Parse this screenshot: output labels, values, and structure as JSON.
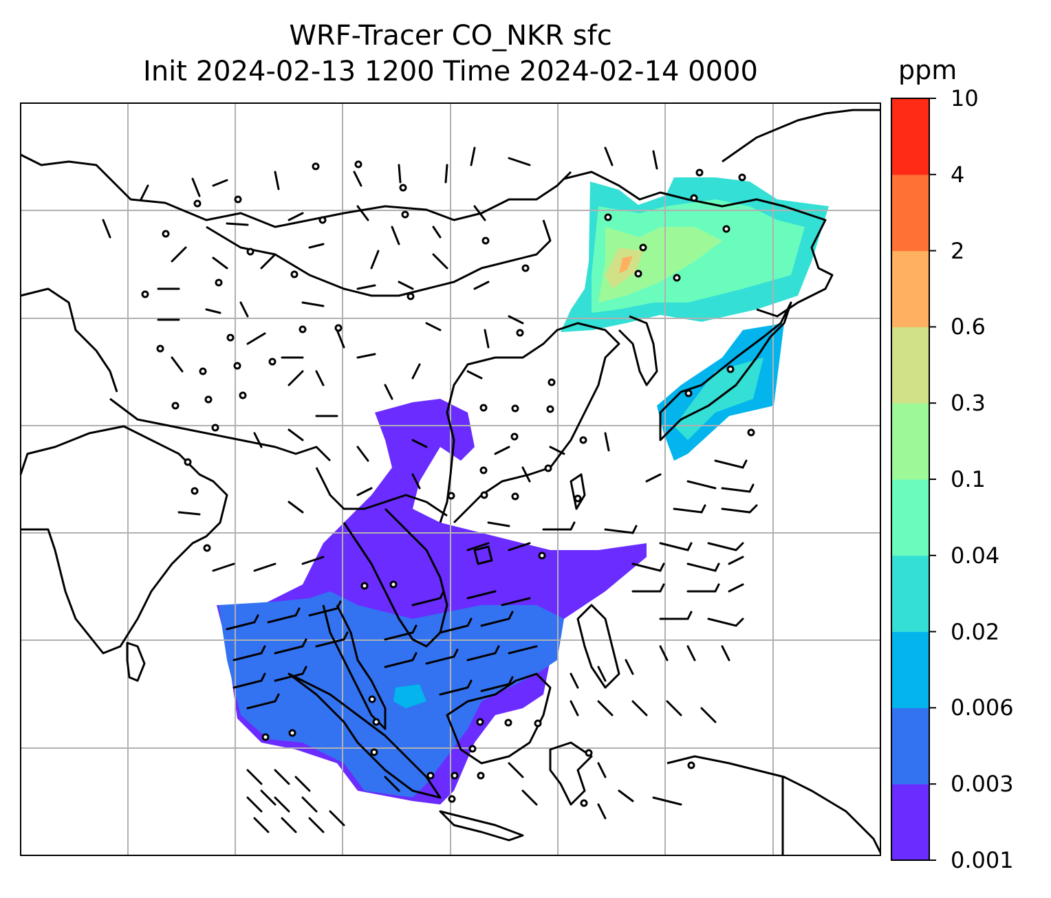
{
  "title_line1": "WRF-Tracer CO_NKR sfc",
  "title_line2": "Init 2024-02-13 1200 Time 2024-02-14 0000",
  "colorbar": {
    "unit": "ppm",
    "levels": [
      "0.001",
      "0.003",
      "0.006",
      "0.02",
      "0.04",
      "0.1",
      "0.3",
      "0.6",
      "2",
      "4",
      "10"
    ],
    "colors": [
      "#6a2cff",
      "#3373f2",
      "#03b4ed",
      "#34dfd6",
      "#6afcbd",
      "#9df998",
      "#d1e187",
      "#ffb060",
      "#ff7135",
      "#ff2b17"
    ]
  },
  "map": {
    "projection": "lat-lon",
    "gridlines": true,
    "overlays": [
      "coastlines",
      "country-borders",
      "wind-barbs",
      "CO tracer shading"
    ],
    "plumes": [
      {
        "region": "Northeast China / Korea / Japan",
        "max_level": "0.6"
      },
      {
        "region": "Southeast Asia / South China Sea / Bay of Bengal",
        "max_level": "0.02"
      }
    ]
  }
}
